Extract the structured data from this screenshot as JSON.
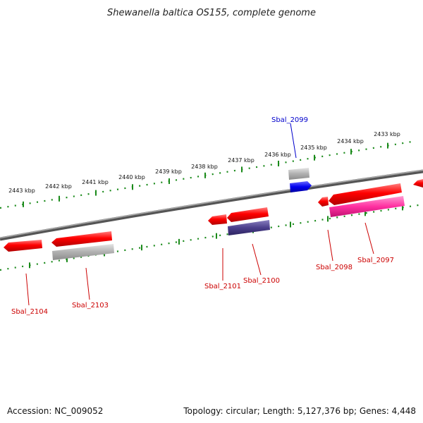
{
  "title": "Shewanella baltica OS155, complete genome",
  "ruler_labels": [
    "2443 kbp",
    "2442 kbp",
    "2441 kbp",
    "2440 kbp",
    "2439 kbp",
    "2438 kbp",
    "2437 kbp",
    "2436 kbp",
    "2435 kbp",
    "2434 kbp",
    "2433 kbp"
  ],
  "genes": [
    {
      "name": "Sbal_2099",
      "color": "#0000cc"
    },
    {
      "name": "Sbal_2100",
      "color": "#cc0000"
    },
    {
      "name": "Sbal_2101",
      "color": "#cc0000"
    },
    {
      "name": "Sbal_2098",
      "color": "#cc0000"
    },
    {
      "name": "Sbal_2097",
      "color": "#cc0000"
    },
    {
      "name": "Sbal_2103",
      "color": "#cc0000"
    },
    {
      "name": "Sbal_2104",
      "color": "#cc0000"
    }
  ],
  "feature_colors": {
    "cds": "#ff0000",
    "blue": "#0000ff",
    "gray": "#b0b0b0",
    "purple": "#4b3f8c",
    "pink": "#ff2fa0",
    "tick": "#1a8a1a"
  },
  "footer": {
    "accession": "Accession: NC_009052",
    "stats": "Topology: circular; Length: 5,127,376 bp; Genes: 4,448"
  }
}
